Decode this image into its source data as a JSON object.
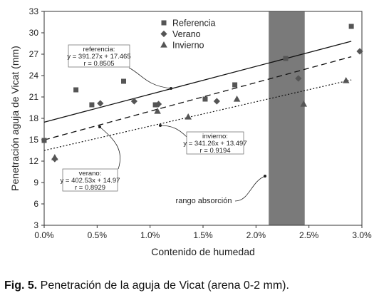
{
  "chart_data": {
    "type": "scatter",
    "xlabel": "Contenido de humedad",
    "ylabel": "Penetración aguja de Vicat (mm)",
    "xlim": [
      0,
      0.03
    ],
    "ylim": [
      3,
      33
    ],
    "x_ticks": [
      0,
      0.005,
      0.01,
      0.015,
      0.02,
      0.025,
      0.03
    ],
    "x_tick_labels": [
      "0.0%",
      "0.5%",
      "1.0%",
      "1.5%",
      "2.0%",
      "2.5%",
      "3.0%"
    ],
    "y_ticks": [
      3,
      6,
      9,
      12,
      15,
      18,
      21,
      24,
      27,
      30,
      33
    ],
    "y_tick_labels": [
      "3",
      "6",
      "9",
      "12",
      "15",
      "18",
      "21",
      "24",
      "27",
      "30",
      "33"
    ],
    "grid": false,
    "legend_position": "top-center",
    "shaded_band": {
      "x_from": 0.0212,
      "x_to": 0.0246,
      "color": "#7a7a7a",
      "label": "rango absorción"
    },
    "series": [
      {
        "name": "Referencia",
        "marker": "square",
        "color": "#555555",
        "points": [
          [
            0.0,
            14.9
          ],
          [
            0.003,
            22.0
          ],
          [
            0.0045,
            19.9
          ],
          [
            0.0075,
            23.2
          ],
          [
            0.0105,
            19.9
          ],
          [
            0.0152,
            20.7
          ],
          [
            0.018,
            22.7
          ],
          [
            0.0228,
            26.4
          ],
          [
            0.029,
            30.9
          ]
        ],
        "trend": {
          "slope": 391.27,
          "intercept": 17.465,
          "style": "solid",
          "label_lines": [
            "referencia:",
            "y = 391.27x + 17.465",
            "r = 0.8505"
          ]
        }
      },
      {
        "name": "Verano",
        "marker": "diamond",
        "color": "#555555",
        "points": [
          [
            0.001,
            12.3
          ],
          [
            0.0053,
            20.1
          ],
          [
            0.0085,
            20.4
          ],
          [
            0.0108,
            20.0
          ],
          [
            0.0163,
            20.4
          ],
          [
            0.024,
            23.6
          ],
          [
            0.0298,
            27.4
          ]
        ],
        "trend": {
          "slope": 402.53,
          "intercept": 14.97,
          "style": "dashed",
          "label_lines": [
            "verano:",
            "y = 402.53x + 14.97",
            "r = 0.8929"
          ]
        }
      },
      {
        "name": "Invierno",
        "marker": "triangle",
        "color": "#555555",
        "points": [
          [
            0.001,
            12.5
          ],
          [
            0.0107,
            19.0
          ],
          [
            0.0136,
            18.2
          ],
          [
            0.0182,
            20.7
          ],
          [
            0.0245,
            20.0
          ],
          [
            0.0285,
            23.3
          ]
        ],
        "trend": {
          "slope": 341.26,
          "intercept": 13.497,
          "style": "dotted",
          "label_lines": [
            "invierno:",
            "y = 341.26x + 13.497",
            "r = 0.9194"
          ]
        }
      }
    ]
  },
  "caption": {
    "prefix": "Fig. 5.",
    "text": " Penetración de la aguja de Vicat (arena 0-2 mm)."
  }
}
